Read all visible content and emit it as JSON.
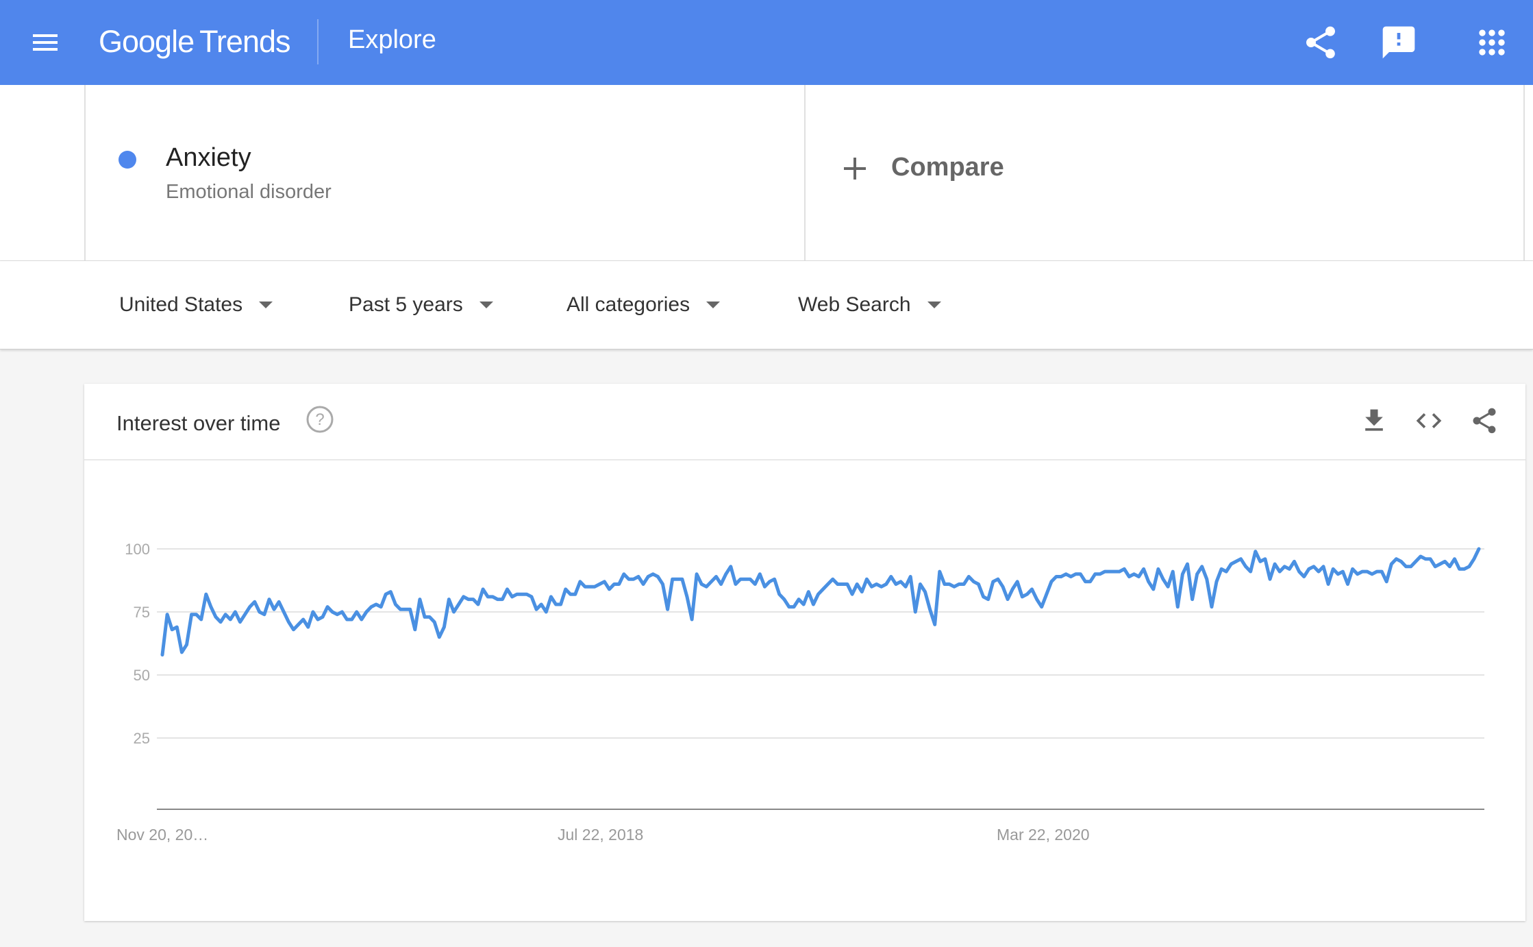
{
  "header": {
    "logo_google": "Google",
    "logo_trends": "Trends",
    "page_title": "Explore",
    "icons": [
      "menu-icon",
      "share-icon",
      "feedback-icon",
      "apps-grid-icon"
    ],
    "background_color": "#5086ec"
  },
  "search": {
    "term": "Anxiety",
    "term_type": "Emotional disorder",
    "term_color": "#4f87ed",
    "compare_label": "Compare"
  },
  "filters": {
    "region": "United States",
    "time_range": "Past 5 years",
    "category": "All categories",
    "search_type": "Web Search"
  },
  "card": {
    "title": "Interest over time",
    "icons": [
      "help-icon",
      "download-icon",
      "embed-code-icon",
      "share-icon"
    ]
  },
  "chart_data": {
    "type": "line",
    "title": "Interest over time",
    "xlabel": "",
    "ylabel": "",
    "ylim": [
      0,
      100
    ],
    "yticks": [
      25,
      50,
      75,
      100
    ],
    "xtick_labels": [
      "Nov 20, 20…",
      "Jul 22, 2018",
      "Mar 22, 2020"
    ],
    "grid": true,
    "series": [
      {
        "color": "#4a90e2",
        "values": [
          58,
          74,
          68,
          69,
          59,
          62,
          74,
          74,
          72,
          82,
          77,
          73,
          71,
          74,
          72,
          75,
          71,
          74,
          77,
          79,
          75,
          74,
          80,
          76,
          79,
          75,
          71,
          68,
          70,
          72,
          69,
          75,
          72,
          73,
          77,
          75,
          74,
          75,
          72,
          72,
          75,
          72,
          75,
          77,
          78,
          77,
          82,
          83,
          78,
          76,
          76,
          76,
          68,
          80,
          73,
          73,
          71,
          65,
          69,
          80,
          75,
          78,
          81,
          80,
          80,
          78,
          84,
          81,
          81,
          80,
          80,
          84,
          81,
          82,
          82,
          82,
          81,
          76,
          78,
          75,
          81,
          78,
          78,
          84,
          82,
          82,
          87,
          85,
          85,
          85,
          86,
          87,
          84,
          86,
          86,
          90,
          88,
          88,
          89,
          86,
          89,
          90,
          89,
          86,
          76,
          88,
          88,
          88,
          81,
          72,
          90,
          86,
          85,
          87,
          89,
          86,
          90,
          93,
          86,
          88,
          88,
          88,
          86,
          90,
          85,
          87,
          88,
          82,
          80,
          77,
          77,
          80,
          78,
          83,
          78,
          82,
          84,
          86,
          88,
          86,
          86,
          86,
          82,
          86,
          83,
          88,
          85,
          86,
          85,
          86,
          89,
          86,
          87,
          85,
          89,
          75,
          86,
          83,
          76,
          70,
          91,
          86,
          86,
          85,
          86,
          86,
          89,
          87,
          86,
          81,
          80,
          87,
          88,
          85,
          80,
          84,
          87,
          81,
          82,
          84,
          80,
          77,
          82,
          87,
          89,
          89,
          90,
          89,
          90,
          90,
          87,
          87,
          90,
          90,
          91,
          91,
          91,
          91,
          92,
          89,
          90,
          89,
          92,
          87,
          84,
          92,
          88,
          85,
          91,
          77,
          90,
          94,
          80,
          90,
          93,
          88,
          77,
          87,
          92,
          91,
          94,
          95,
          96,
          93,
          91,
          99,
          95,
          96,
          88,
          94,
          91,
          93,
          92,
          95,
          91,
          89,
          92,
          93,
          91,
          93,
          86,
          92,
          90,
          91,
          86,
          92,
          90,
          91,
          91,
          90,
          91,
          91,
          87,
          94,
          96,
          95,
          93,
          93,
          95,
          97,
          96,
          96,
          93,
          94,
          95,
          93,
          96,
          92,
          92,
          93,
          96,
          100
        ]
      }
    ]
  }
}
